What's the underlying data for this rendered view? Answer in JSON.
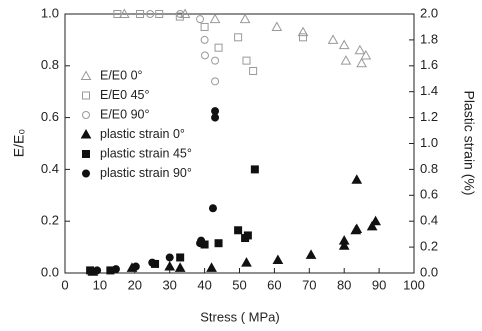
{
  "chart_data": {
    "type": "scatter",
    "xlabel": "Stress ( MPa)",
    "ylabel": "E/E₀",
    "y2label": "Plastic strain (%)",
    "xlim": [
      0,
      100
    ],
    "xticks": [
      0,
      10,
      20,
      30,
      40,
      50,
      60,
      70,
      80,
      90,
      100
    ],
    "ylim": [
      0,
      1
    ],
    "yticks": [
      {
        "value": 0,
        "label": "0.0"
      },
      0.2,
      0.4,
      0.6,
      0.8,
      {
        "value": 1,
        "label": "1.0"
      }
    ],
    "y2lim": [
      0,
      2
    ],
    "y2ticks": [
      {
        "value": 0,
        "label": "0.0"
      },
      0.2,
      0.4,
      0.6,
      0.8,
      {
        "value": 1,
        "label": "1.0"
      },
      1.2,
      1.4,
      1.6,
      1.8,
      {
        "value": 2,
        "label": "2.0"
      }
    ],
    "legend": "upper left",
    "series": [
      {
        "name": "E/E0 0°",
        "color": "#999999",
        "marker": "triangle",
        "filled": false,
        "x": [
          17,
          34.4,
          43,
          51.6,
          60.7,
          68.2,
          76.8,
          80,
          80.5,
          84.5,
          85,
          86.2
        ],
        "values": [
          1.0,
          1.0,
          0.98,
          0.98,
          0.95,
          0.93,
          0.9,
          0.88,
          0.82,
          0.86,
          0.81,
          0.84
        ]
      },
      {
        "name": "E/E0 45°",
        "color": "#999999",
        "marker": "square",
        "filled": false,
        "x": [
          15,
          21.5,
          27,
          32.9,
          40,
          44,
          49.6,
          52,
          53.9,
          68.2
        ],
        "values": [
          1.0,
          1.0,
          1.0,
          0.99,
          0.95,
          0.87,
          0.91,
          0.82,
          0.78,
          0.91
        ]
      },
      {
        "name": "E/E0 90°",
        "color": "#999999",
        "marker": "circle",
        "filled": false,
        "x": [
          24.4,
          33,
          38.7,
          40,
          40.1,
          43,
          43
        ],
        "values": [
          1.0,
          1.0,
          0.98,
          0.9,
          0.84,
          0.82,
          0.74
        ]
      },
      {
        "name": "plastic strain 0°",
        "color": "#111111",
        "marker": "triangle",
        "filled": true,
        "axis": "y2",
        "x": [
          8,
          19.2,
          30,
          33,
          42,
          52,
          61,
          70.5,
          80,
          80,
          83.3,
          83.6,
          88,
          89,
          83.6
        ],
        "values": [
          0.01,
          0.04,
          0.05,
          0.04,
          0.04,
          0.08,
          0.1,
          0.14,
          0.25,
          0.21,
          0.33,
          0.34,
          0.36,
          0.4,
          0.72
        ]
      },
      {
        "name": "plastic strain 45°",
        "color": "#111111",
        "marker": "square",
        "filled": true,
        "axis": "y2",
        "x": [
          7.2,
          13,
          25.8,
          33,
          40,
          44,
          49.6,
          51.6,
          52.4,
          54.4
        ],
        "values": [
          0.02,
          0.02,
          0.07,
          0.12,
          0.22,
          0.23,
          0.33,
          0.27,
          0.29,
          0.8
        ]
      },
      {
        "name": "plastic strain 90°",
        "color": "#111111",
        "marker": "circle",
        "filled": true,
        "axis": "y2",
        "x": [
          9.2,
          14.6,
          20.3,
          25,
          30,
          38.7,
          39,
          42.4,
          43,
          43
        ],
        "values": [
          0.02,
          0.03,
          0.05,
          0.08,
          0.12,
          0.23,
          0.25,
          0.5,
          1.25,
          1.2
        ]
      }
    ]
  }
}
